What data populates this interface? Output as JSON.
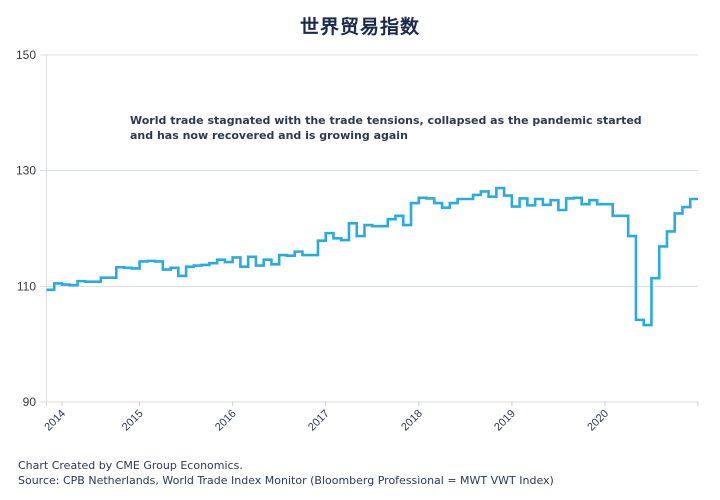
{
  "chart_data": {
    "type": "line",
    "title": "世界贸易指数",
    "xlabel": "",
    "ylabel": "",
    "ylim": [
      90,
      150
    ],
    "yticks": [
      90,
      110,
      130,
      150
    ],
    "grid": true,
    "x_unit": "months since Jan 2014",
    "xlim": [
      0,
      84
    ],
    "xticks": [
      {
        "value": 2,
        "label": "2014"
      },
      {
        "value": 12,
        "label": "2015"
      },
      {
        "value": 24,
        "label": "2016"
      },
      {
        "value": 36,
        "label": "2017"
      },
      {
        "value": 48,
        "label": "2018"
      },
      {
        "value": 60,
        "label": "2019"
      },
      {
        "value": 72,
        "label": "2020"
      }
    ],
    "annotation": [
      "World trade stagnated with the trade tensions, collapsed as the pandemic started",
      "and has now recovered and is growing again"
    ],
    "series": [
      {
        "name": "World Trade Index",
        "color": "#29abe2",
        "step": "after",
        "values": [
          109.4,
          110.5,
          110.3,
          110.2,
          110.9,
          110.8,
          110.8,
          111.5,
          111.5,
          113.3,
          113.2,
          113.1,
          114.3,
          114.4,
          114.3,
          112.9,
          113.2,
          111.8,
          113.4,
          113.6,
          113.7,
          114.0,
          114.6,
          114.2,
          115.0,
          113.4,
          115.1,
          113.6,
          114.6,
          113.8,
          115.4,
          115.3,
          116.0,
          115.4,
          115.4,
          117.9,
          119.2,
          118.3,
          118.0,
          120.9,
          118.7,
          120.6,
          120.4,
          120.4,
          121.6,
          122.2,
          120.6,
          124.4,
          125.3,
          125.2,
          124.4,
          123.6,
          124.4,
          125.1,
          125.1,
          125.8,
          126.4,
          125.5,
          127.0,
          125.7,
          123.8,
          125.2,
          124.0,
          125.1,
          124.1,
          124.9,
          123.2,
          125.2,
          125.3,
          124.2,
          124.9,
          124.2,
          124.2,
          122.2,
          122.2,
          118.7,
          104.2,
          103.3,
          111.4,
          116.9,
          119.5,
          122.6,
          123.7,
          125.1
        ]
      }
    ]
  },
  "footer": {
    "line1": "Chart Created by CME Group Economics.",
    "line2": "Source: CPB Netherlands, World Trade Index Monitor (Bloomberg Professional = MWT VWT Index)"
  },
  "colors": {
    "grid": "#d9dde1",
    "axis": "#c9cfd4"
  }
}
